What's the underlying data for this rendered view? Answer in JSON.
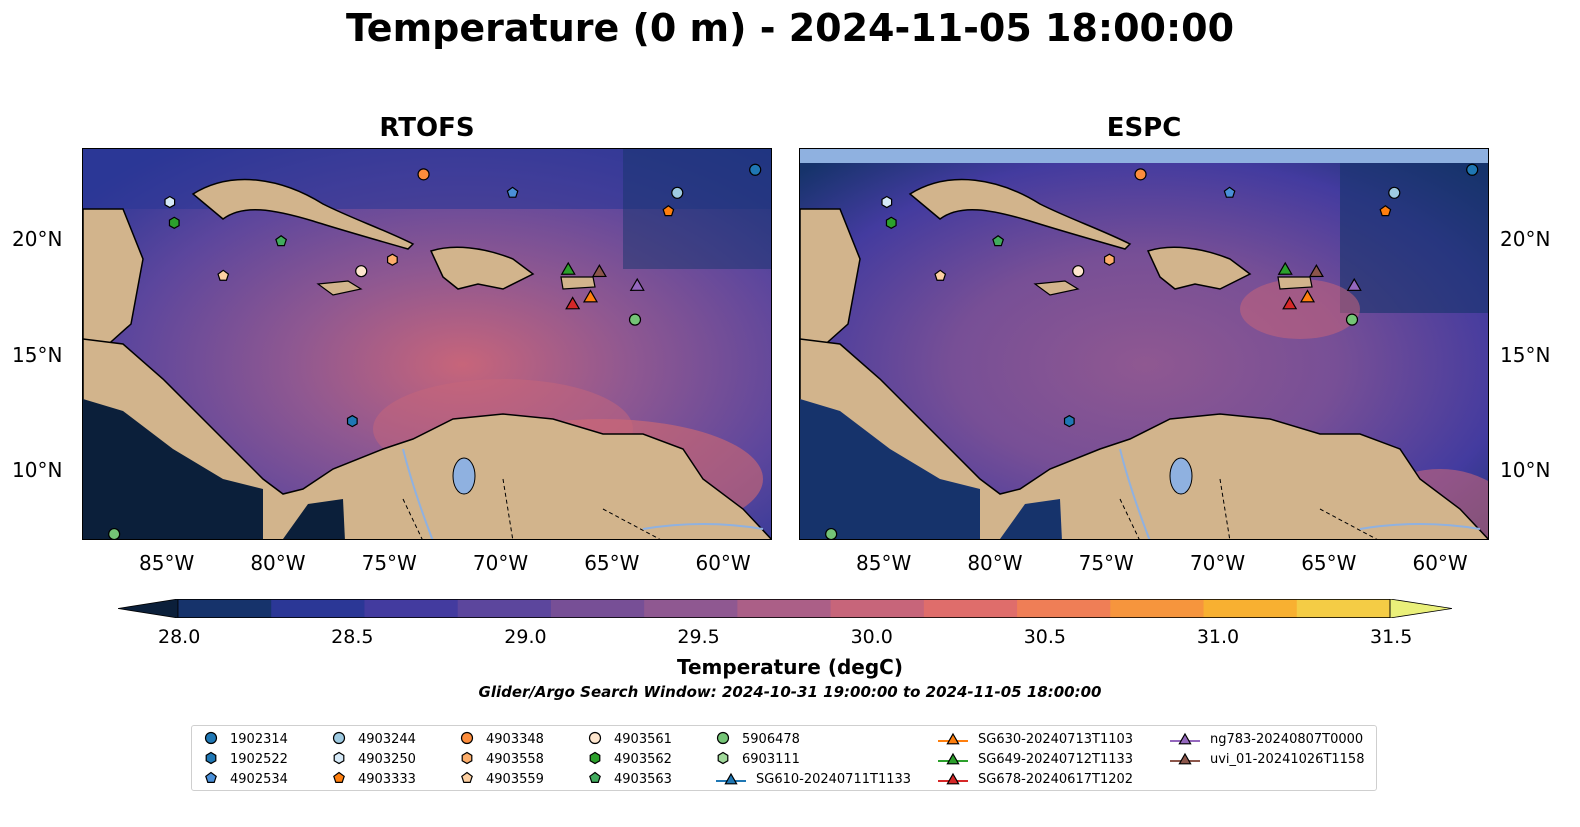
{
  "title": "Temperature (0 m) - 2024-11-05 18:00:00",
  "panels": [
    {
      "name": "RTOFS"
    },
    {
      "name": "ESPC"
    }
  ],
  "lon_ticks": [
    "85°W",
    "80°W",
    "75°W",
    "70°W",
    "65°W",
    "60°W"
  ],
  "lat_ticks": [
    "20°N",
    "15°N",
    "10°N"
  ],
  "extent": {
    "lon": [
      -89,
      -58
    ],
    "lat": [
      7,
      24
    ]
  },
  "colorbar": {
    "label": "Temperature (degC)",
    "ticks": [
      "28.0",
      "28.5",
      "29.0",
      "29.5",
      "30.0",
      "30.5",
      "31.0",
      "31.5"
    ],
    "range": [
      28.0,
      31.5
    ],
    "colors": [
      "#0b1f3a",
      "#16336b",
      "#2b3796",
      "#433b9f",
      "#5c469d",
      "#774f96",
      "#8f5891",
      "#ab5f87",
      "#c7657a",
      "#df6d6b",
      "#ef7e56",
      "#f6953d",
      "#f8b031",
      "#f4cc45",
      "#eaf07a"
    ]
  },
  "search_window": "Glider/Argo Search Window: 2024-10-31 19:00:00 to 2024-11-05 18:00:00",
  "legend": [
    {
      "label": "1902314",
      "marker": "circle",
      "color": "#1f77b4"
    },
    {
      "label": "1902522",
      "marker": "hexagon",
      "color": "#1f77b4"
    },
    {
      "label": "4902534",
      "marker": "pentagon",
      "color": "#4a90d9"
    },
    {
      "label": "4903244",
      "marker": "circle",
      "color": "#9ecae1"
    },
    {
      "label": "4903250",
      "marker": "hexagon",
      "color": "#d6eaf8"
    },
    {
      "label": "4903333",
      "marker": "pentagon",
      "color": "#ff7f0e"
    },
    {
      "label": "4903348",
      "marker": "circle",
      "color": "#fd8d3c"
    },
    {
      "label": "4903558",
      "marker": "hexagon",
      "color": "#fdae6b"
    },
    {
      "label": "4903559",
      "marker": "pentagon",
      "color": "#fdd0a2"
    },
    {
      "label": "4903561",
      "marker": "circle",
      "color": "#fee6ce"
    },
    {
      "label": "4903562",
      "marker": "hexagon",
      "color": "#2ca02c"
    },
    {
      "label": "4903563",
      "marker": "pentagon",
      "color": "#41ab5d"
    },
    {
      "label": "5906478",
      "marker": "circle",
      "color": "#74c476"
    },
    {
      "label": "6903111",
      "marker": "hexagon",
      "color": "#a1d99b"
    },
    {
      "label": "SG610-20240711T1133",
      "marker": "triangle",
      "color": "#1f77b4"
    },
    {
      "label": "SG630-20240713T1103",
      "marker": "triangle",
      "color": "#ff7f0e"
    },
    {
      "label": "SG649-20240712T1133",
      "marker": "triangle",
      "color": "#2ca02c"
    },
    {
      "label": "SG678-20240617T1202",
      "marker": "triangle",
      "color": "#d62728"
    },
    {
      "label": "ng783-20240807T0000",
      "marker": "triangle",
      "color": "#9467bd"
    },
    {
      "label": "uvi_01-20241026T1158",
      "marker": "triangle",
      "color": "#8c564b"
    }
  ],
  "observations": [
    {
      "id": "1902314",
      "lon": -58.8,
      "lat": 23.1
    },
    {
      "id": "1902522",
      "lon": -76.9,
      "lat": 12.2
    },
    {
      "id": "4902534",
      "lon": -69.7,
      "lat": 22.1
    },
    {
      "id": "4903244",
      "lon": -62.3,
      "lat": 22.1
    },
    {
      "id": "4903250",
      "lon": -85.1,
      "lat": 21.7
    },
    {
      "id": "4903333",
      "lon": -62.7,
      "lat": 21.3
    },
    {
      "id": "4903348",
      "lon": -73.7,
      "lat": 22.9
    },
    {
      "id": "4903558",
      "lon": -75.1,
      "lat": 19.2
    },
    {
      "id": "4903559",
      "lon": -82.7,
      "lat": 18.5
    },
    {
      "id": "4903561",
      "lon": -76.5,
      "lat": 18.7
    },
    {
      "id": "4903562",
      "lon": -84.9,
      "lat": 20.8
    },
    {
      "id": "4903563",
      "lon": -80.1,
      "lat": 20.0
    },
    {
      "id": "5906478",
      "lon": -64.2,
      "lat": 16.6
    },
    {
      "id": "5906478",
      "lon": -87.6,
      "lat": 7.3
    },
    {
      "id": "SG649-20240712T1133",
      "lon": -67.2,
      "lat": 18.8
    },
    {
      "id": "uvi_01-20241026T1158",
      "lon": -65.8,
      "lat": 18.7
    },
    {
      "id": "ng783-20240807T0000",
      "lon": -64.1,
      "lat": 18.1
    },
    {
      "id": "SG630-20240713T1103",
      "lon": -66.2,
      "lat": 17.6
    },
    {
      "id": "SG678-20240617T1202",
      "lon": -67.0,
      "lat": 17.3
    }
  ]
}
